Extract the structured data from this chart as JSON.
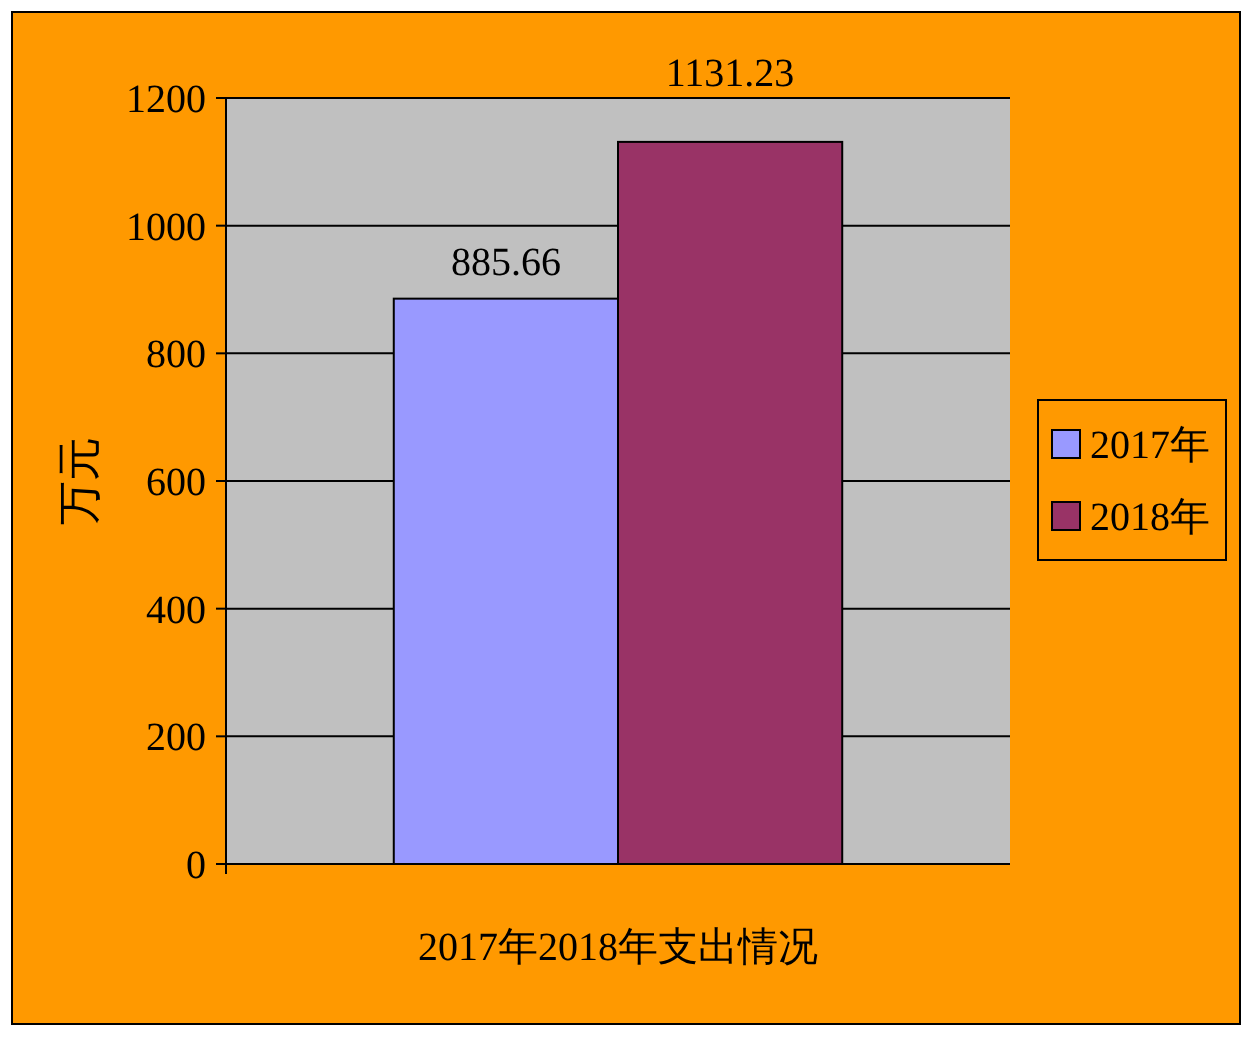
{
  "chart_data": {
    "type": "bar",
    "ylabel": "万元",
    "categories": [
      "2017年2018年支出情况"
    ],
    "series": [
      {
        "name": "2017年",
        "color": "#9999ff",
        "values": [
          885.66
        ]
      },
      {
        "name": "2018年",
        "color": "#993366",
        "values": [
          1131.23
        ]
      }
    ],
    "ylim": [
      0,
      1200
    ],
    "yticks": [
      0,
      200,
      400,
      600,
      800,
      1000,
      1200
    ],
    "grid": "y",
    "legend": "right",
    "data_labels": true
  }
}
